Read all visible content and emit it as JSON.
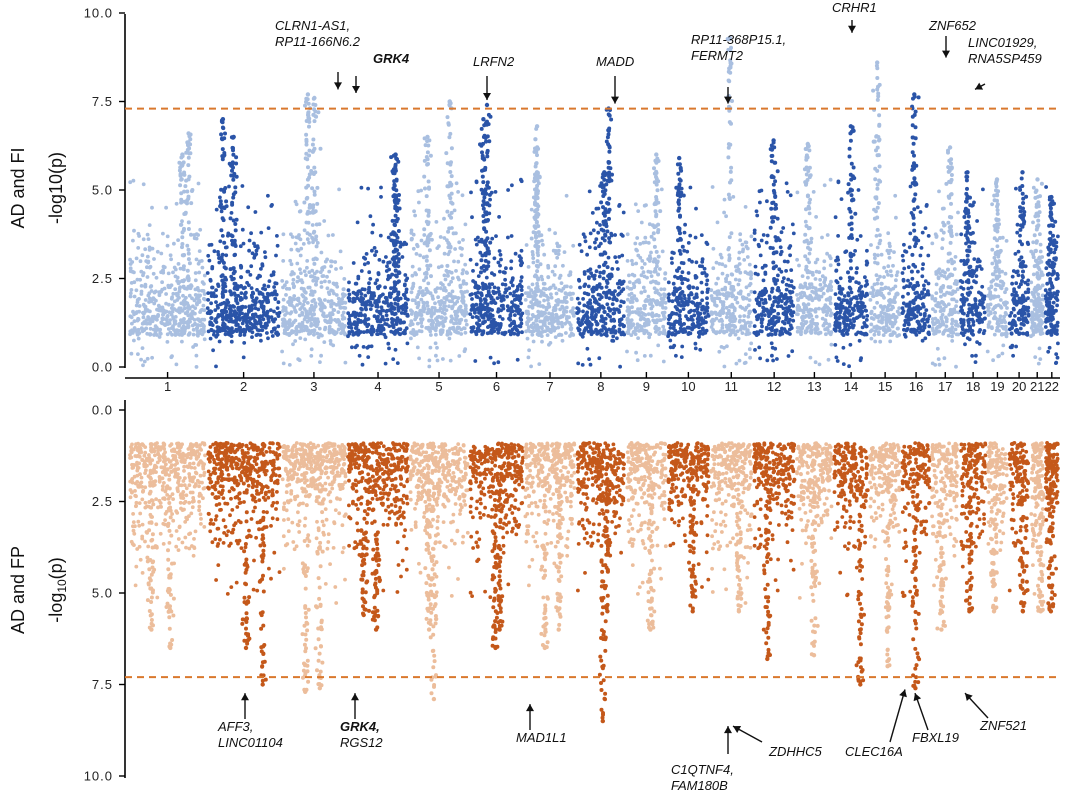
{
  "chart_data": [
    {
      "type": "scatter",
      "subtype": "manhattan",
      "panel_label": "AD and FI",
      "ylabel": "-log10(p)",
      "ylim": [
        0,
        10
      ],
      "y_direction": "normal",
      "yticks": [
        0.0,
        2.5,
        5.0,
        7.5,
        10.0
      ],
      "ytick_labels": [
        "0.0",
        "2.5",
        "5.0",
        "7.5",
        "10.0"
      ],
      "threshold": 7.3,
      "colors": {
        "light": "#a9bfe0",
        "dark": "#2a54a8"
      },
      "chromosome_peaks": [
        6.0,
        6.6,
        6.5,
        7.0,
        7.7,
        7.6,
        6.0,
        5.6,
        7.5,
        6.5,
        7.0,
        7.4,
        6.8,
        5.5,
        7.3,
        5.5,
        6.0,
        5.9,
        9.3,
        6.4,
        6.3,
        6.8,
        8.6,
        7.7,
        6.2,
        5.5,
        5.3,
        5.5,
        5.3,
        4.8,
        6.1
      ],
      "annotations": [
        {
          "lines": [
            "CLRN1-AS1,",
            "RP11-166N6.2"
          ],
          "bold": false,
          "y": 7.7,
          "position": 0
        },
        {
          "lines": [
            "GRK4"
          ],
          "bold": true,
          "y": 7.6,
          "position": 1
        },
        {
          "lines": [
            "LRFN2"
          ],
          "bold": false,
          "y": 7.4,
          "position": 2
        },
        {
          "lines": [
            "MADD"
          ],
          "bold": false,
          "y": 7.3,
          "position": 3
        },
        {
          "lines": [
            "RP11-368P15.1,",
            "FERMT2"
          ],
          "bold": false,
          "y": 7.3,
          "position": 4
        },
        {
          "lines": [
            "CRHR1"
          ],
          "bold": false,
          "y": 9.3,
          "position": 5
        },
        {
          "lines": [
            "ZNF652"
          ],
          "bold": false,
          "y": 8.6,
          "position": 6
        },
        {
          "lines": [
            "LINC01929,",
            "RNA5SP459"
          ],
          "bold": false,
          "y": 7.7,
          "position": 7
        }
      ]
    },
    {
      "type": "scatter",
      "subtype": "manhattan",
      "panel_label": "AD and FP",
      "ylabel": "-log10(p)",
      "ylim": [
        0,
        10
      ],
      "y_direction": "inverted",
      "yticks": [
        0.0,
        2.5,
        5.0,
        7.5,
        10.0
      ],
      "ytick_labels": [
        "0.0",
        "2.5",
        "5.0",
        "7.5",
        "10.0"
      ],
      "threshold": 7.3,
      "colors": {
        "light": "#ecbd9b",
        "dark": "#c4581a"
      },
      "chromosome_peaks": [
        6.0,
        6.5,
        6.5,
        7.5,
        7.7,
        7.6,
        6.0,
        5.6,
        7.9,
        6.0,
        6.5,
        6.0,
        6.0,
        6.5,
        8.5,
        5.5,
        6.0,
        5.5,
        5.5,
        6.8,
        6.7,
        7.5,
        7.0,
        7.6,
        6.0,
        5.5,
        5.5,
        5.5,
        5.5,
        5.5,
        6.3
      ],
      "annotations": [
        {
          "lines": [
            "AFF3,",
            "LINC01104"
          ],
          "bold": false,
          "y": 7.6,
          "position": 0
        },
        {
          "lines": [
            "GRK4,"
          ],
          "bold": true,
          "extra": "RGS12",
          "y": 7.6,
          "position": 1
        },
        {
          "lines": [
            "MAD1L1"
          ],
          "bold": false,
          "y": 7.9,
          "position": 2
        },
        {
          "lines": [
            "C1QTNF4,",
            "FAM180B"
          ],
          "bold": false,
          "y": 8.5,
          "position": 3
        },
        {
          "lines": [
            "ZDHHC5"
          ],
          "bold": false,
          "y": 8.5,
          "position": 4
        },
        {
          "lines": [
            "CLEC16A"
          ],
          "bold": false,
          "y": 7.5,
          "position": 5
        },
        {
          "lines": [
            "FBXL19"
          ],
          "bold": false,
          "y": 7.6,
          "position": 6
        },
        {
          "lines": [
            "ZNF521"
          ],
          "bold": false,
          "y": 7.6,
          "position": 7
        }
      ]
    }
  ],
  "chromosomes": [
    "1",
    "2",
    "3",
    "4",
    "5",
    "6",
    "7",
    "8",
    "9",
    "10",
    "11",
    "12",
    "13",
    "14",
    "15",
    "16",
    "17",
    "18",
    "19",
    "20",
    "21",
    "22"
  ]
}
